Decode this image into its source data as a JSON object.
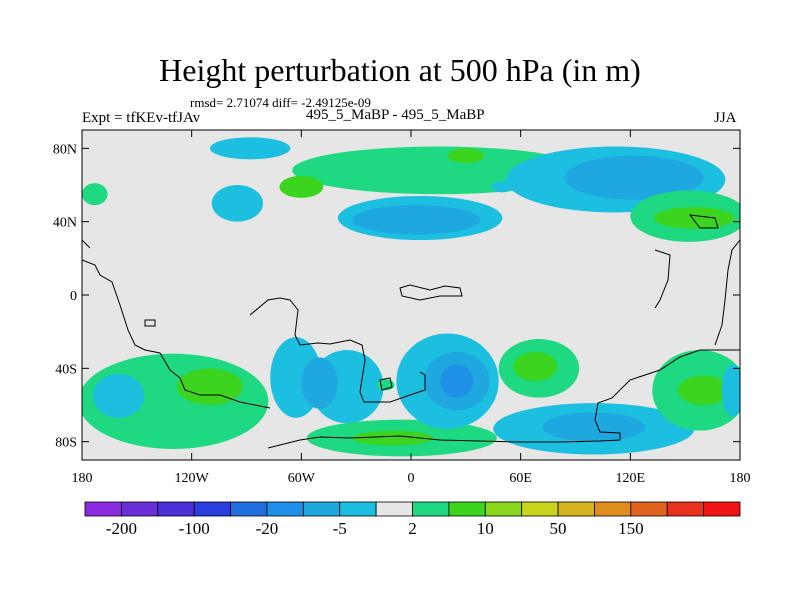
{
  "chart_data": {
    "type": "contour-map",
    "title": "Height perturbation at 500 hPa (in m)",
    "stats_line": "rmsd= 2.71074 diff= -2.49125e-09",
    "left_label": "Expt = tfKEv-tfJAv",
    "center_label": "495_5_MaBP - 495_5_MaBP",
    "right_label": "JJA",
    "xlim": [
      -180,
      180
    ],
    "ylim": [
      -90,
      90
    ],
    "x_ticks": [
      {
        "value": -180,
        "label": "180"
      },
      {
        "value": -120,
        "label": "120W"
      },
      {
        "value": -60,
        "label": "60W"
      },
      {
        "value": 0,
        "label": "0"
      },
      {
        "value": 60,
        "label": "60E"
      },
      {
        "value": 120,
        "label": "120E"
      },
      {
        "value": 180,
        "label": "180"
      }
    ],
    "y_ticks": [
      {
        "value": 80,
        "label": "80N"
      },
      {
        "value": 40,
        "label": "40N"
      },
      {
        "value": 0,
        "label": "0"
      },
      {
        "value": -40,
        "label": "40S"
      },
      {
        "value": -80,
        "label": "80S"
      }
    ],
    "colorbar": {
      "colors": [
        "#8a2be2",
        "#6a2fd6",
        "#4b30d8",
        "#2a3ee0",
        "#1f6fe0",
        "#1e90e8",
        "#1fa8e0",
        "#1cbfe0",
        "#e6e6e6",
        "#1ed982",
        "#3cd41e",
        "#8ad61e",
        "#c8d41e",
        "#d4b41e",
        "#e08c1e",
        "#e0641e",
        "#e8321e",
        "#f01414"
      ],
      "labels": [
        {
          "after_box": 1,
          "text": "-200"
        },
        {
          "after_box": 3,
          "text": "-100"
        },
        {
          "after_box": 5,
          "text": "-20"
        },
        {
          "after_box": 7,
          "text": "-5"
        },
        {
          "after_box": 9,
          "text": "2"
        },
        {
          "after_box": 11,
          "text": "10"
        },
        {
          "after_box": 13,
          "text": "50"
        },
        {
          "after_box": 15,
          "text": "150"
        }
      ]
    },
    "field_blobs": [
      {
        "lon": -88,
        "lat": 80,
        "rlon": 22,
        "rlat": 6,
        "level": "cyan"
      },
      {
        "lon": -95,
        "lat": 50,
        "rlon": 14,
        "rlat": 10,
        "level": "cyan"
      },
      {
        "lon": 15,
        "lat": 68,
        "rlon": 80,
        "rlat": 13,
        "level": "green"
      },
      {
        "lon": -60,
        "lat": 59,
        "rlon": 12,
        "rlat": 6,
        "level": "green2"
      },
      {
        "lon": 30,
        "lat": 76,
        "rlon": 10,
        "rlat": 4,
        "level": "green2"
      },
      {
        "lon": 5,
        "lat": 42,
        "rlon": 45,
        "rlat": 12,
        "level": "cyan"
      },
      {
        "lon": 3,
        "lat": 41,
        "rlon": 35,
        "rlat": 8,
        "level": "blue1"
      },
      {
        "lon": 50,
        "lat": 59,
        "rlon": 6,
        "rlat": 3,
        "level": "cyan"
      },
      {
        "lon": 112,
        "lat": 63,
        "rlon": 60,
        "rlat": 18,
        "level": "cyan"
      },
      {
        "lon": 122,
        "lat": 64,
        "rlon": 38,
        "rlat": 12,
        "level": "blue1"
      },
      {
        "lon": 152,
        "lat": 43,
        "rlon": 32,
        "rlat": 14,
        "level": "green"
      },
      {
        "lon": 155,
        "lat": 42,
        "rlon": 22,
        "rlat": 6,
        "level": "green2"
      },
      {
        "lon": -173,
        "lat": 55,
        "rlon": 7,
        "rlat": 6,
        "level": "green"
      },
      {
        "lon": -130,
        "lat": -58,
        "rlon": 52,
        "rlat": 26,
        "level": "green"
      },
      {
        "lon": -110,
        "lat": -50,
        "rlon": 18,
        "rlat": 10,
        "level": "green2"
      },
      {
        "lon": -160,
        "lat": -55,
        "rlon": 14,
        "rlat": 12,
        "level": "cyan"
      },
      {
        "lon": -63,
        "lat": -45,
        "rlon": 14,
        "rlat": 22,
        "level": "cyan"
      },
      {
        "lon": -35,
        "lat": -50,
        "rlon": 20,
        "rlat": 20,
        "level": "cyan"
      },
      {
        "lon": -50,
        "lat": -48,
        "rlon": 10,
        "rlat": 14,
        "level": "blue1"
      },
      {
        "lon": -5,
        "lat": -78,
        "rlon": 52,
        "rlat": 10,
        "level": "green"
      },
      {
        "lon": -10,
        "lat": -78,
        "rlon": 22,
        "rlat": 4,
        "level": "green2"
      },
      {
        "lon": 20,
        "lat": -47,
        "rlon": 28,
        "rlat": 26,
        "level": "cyan"
      },
      {
        "lon": 25,
        "lat": -47,
        "rlon": 18,
        "rlat": 16,
        "level": "blue1"
      },
      {
        "lon": 25,
        "lat": -47,
        "rlon": 9,
        "rlat": 9,
        "level": "blue2"
      },
      {
        "lon": -14,
        "lat": -49,
        "rlon": 5,
        "rlat": 3,
        "level": "green"
      },
      {
        "lon": 70,
        "lat": -40,
        "rlon": 22,
        "rlat": 16,
        "level": "green"
      },
      {
        "lon": 68,
        "lat": -39,
        "rlon": 12,
        "rlat": 8,
        "level": "green2"
      },
      {
        "lon": 100,
        "lat": -73,
        "rlon": 55,
        "rlat": 14,
        "level": "cyan"
      },
      {
        "lon": 100,
        "lat": -72,
        "rlon": 28,
        "rlat": 8,
        "level": "blue1"
      },
      {
        "lon": 158,
        "lat": -52,
        "rlon": 26,
        "rlat": 22,
        "level": "green"
      },
      {
        "lon": 160,
        "lat": -52,
        "rlon": 14,
        "rlat": 8,
        "level": "green2"
      },
      {
        "lon": 176,
        "lat": -52,
        "rlon": 6,
        "rlat": 14,
        "level": "cyan"
      }
    ],
    "level_colors": {
      "green": "#1ed982",
      "green2": "#3cd41e",
      "cyan": "#1cbfe0",
      "blue1": "#1fa8e0",
      "blue2": "#1e90e8"
    },
    "background_color": "#e6e6e6"
  }
}
